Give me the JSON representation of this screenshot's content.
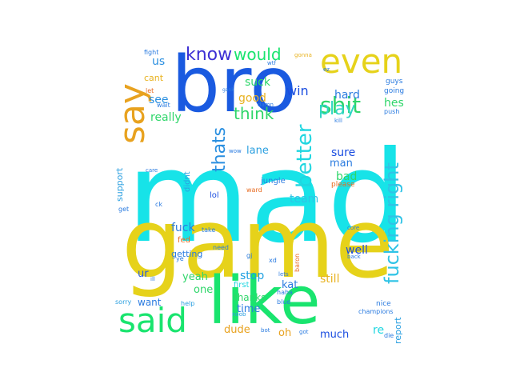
{
  "words": [
    {
      "text": "mad",
      "color": "#17e3e8"
    },
    {
      "text": "game",
      "color": "#e6d21a"
    },
    {
      "text": "bro",
      "color": "#1a5ae0"
    },
    {
      "text": "like",
      "color": "#19e46e"
    },
    {
      "text": "said",
      "color": "#19e46e"
    },
    {
      "text": "even",
      "color": "#e6d21a"
    },
    {
      "text": "say",
      "color": "#e8a21f"
    },
    {
      "text": "know",
      "color": "#3c2fd4"
    },
    {
      "text": "would",
      "color": "#19e46e"
    },
    {
      "text": "shit",
      "color": "#2fd66a"
    },
    {
      "text": "play",
      "color": "#2fd6c4"
    },
    {
      "text": "thats",
      "color": "#2a8fe0"
    },
    {
      "text": "better",
      "color": "#1fd6e0"
    },
    {
      "text": "fucking right",
      "color": "#2fc3e6"
    },
    {
      "text": "think",
      "color": "#2fd66a"
    },
    {
      "text": "suck",
      "color": "#2fd66a"
    },
    {
      "text": "win",
      "color": "#1a4de0"
    },
    {
      "text": "good",
      "color": "#e8b21f"
    },
    {
      "text": "really",
      "color": "#2fd66a"
    },
    {
      "text": "see",
      "color": "#2a8fe0"
    },
    {
      "text": "us",
      "color": "#2a8fe0"
    },
    {
      "text": "hard",
      "color": "#2a7be0"
    },
    {
      "text": "hes",
      "color": "#2fd66a"
    },
    {
      "text": "sure",
      "color": "#1a4de0"
    },
    {
      "text": "man",
      "color": "#2a7be0"
    },
    {
      "text": "bad",
      "color": "#2fd66a"
    },
    {
      "text": "team",
      "color": "#2fc3e6"
    },
    {
      "text": "lane",
      "color": "#2a9fe0"
    },
    {
      "text": "fuck",
      "color": "#2a7be0"
    },
    {
      "text": "well",
      "color": "#1a4de0"
    },
    {
      "text": "yeah",
      "color": "#2fd66a"
    },
    {
      "text": "one",
      "color": "#2fd66a"
    },
    {
      "text": "stop",
      "color": "#1fa0e0"
    },
    {
      "text": "still",
      "color": "#e8b21f"
    },
    {
      "text": "thanks",
      "color": "#2fd66a"
    },
    {
      "text": "time",
      "color": "#2a7be0"
    },
    {
      "text": "dude",
      "color": "#e8a21f"
    },
    {
      "text": "oh",
      "color": "#e8a21f"
    },
    {
      "text": "much",
      "color": "#1a4de0"
    },
    {
      "text": "re",
      "color": "#1fd6e0"
    },
    {
      "text": "report",
      "color": "#2a9fe0"
    },
    {
      "text": "want",
      "color": "#2a7be0"
    },
    {
      "text": "ur",
      "color": "#2a5be0"
    },
    {
      "text": "kat",
      "color": "#2a7be0"
    },
    {
      "text": "support",
      "color": "#2a9fe0"
    },
    {
      "text": "getting",
      "color": "#2a7be0"
    },
    {
      "text": "cant",
      "color": "#e8b21f"
    },
    {
      "text": "lol",
      "color": "#1a4de0"
    },
    {
      "text": "jungle",
      "color": "#2a7be0"
    },
    {
      "text": "please",
      "color": "#e86a1f"
    },
    {
      "text": "ward",
      "color": "#e86a1f"
    },
    {
      "text": "fed",
      "color": "#e86a1f"
    },
    {
      "text": "didnt",
      "color": "#2a9fe0"
    },
    {
      "text": "baron",
      "color": "#e86a1f"
    },
    {
      "text": "guys",
      "color": "#2a7be0"
    },
    {
      "text": "going",
      "color": "#2a7be0"
    },
    {
      "text": "push",
      "color": "#2a7be0"
    },
    {
      "text": "nice",
      "color": "#2a7be0"
    },
    {
      "text": "champions",
      "color": "#2a7be0"
    },
    {
      "text": "die",
      "color": "#2a7be0"
    },
    {
      "text": "sorry",
      "color": "#2a9fe0"
    },
    {
      "text": "help",
      "color": "#2a9fe0"
    },
    {
      "text": "need",
      "color": "#2a7be0"
    },
    {
      "text": "take",
      "color": "#2a7be0"
    },
    {
      "text": "get",
      "color": "#2a7be0"
    },
    {
      "text": "first",
      "color": "#1fd6e0"
    },
    {
      "text": "blue",
      "color": "#2a7be0"
    },
    {
      "text": "haha",
      "color": "#2a7be0"
    },
    {
      "text": "lets",
      "color": "#2a7be0"
    },
    {
      "text": "noob",
      "color": "#2a9fe0"
    },
    {
      "text": "bot",
      "color": "#2a7be0"
    },
    {
      "text": "got",
      "color": "#2a7be0"
    },
    {
      "text": "fight",
      "color": "#2a7be0"
    },
    {
      "text": "wait",
      "color": "#2a7be0"
    },
    {
      "text": "let",
      "color": "#e86a1f"
    },
    {
      "text": "gonna",
      "color": "#e8b21f"
    },
    {
      "text": "damn",
      "color": "#2a7be0"
    },
    {
      "text": "xd",
      "color": "#2a7be0"
    },
    {
      "text": "gj",
      "color": "#2a7be0"
    },
    {
      "text": "kill",
      "color": "#2a7be0"
    },
    {
      "text": "ez",
      "color": "#2a7be0"
    },
    {
      "text": "wtf",
      "color": "#2a7be0"
    },
    {
      "text": "wow",
      "color": "#2a7be0"
    },
    {
      "text": "ck",
      "color": "#2a7be0"
    },
    {
      "text": "ill",
      "color": "#2a7be0"
    },
    {
      "text": "ye",
      "color": "#2a7be0"
    },
    {
      "text": "core",
      "color": "#2a7be0"
    },
    {
      "text": "back",
      "color": "#2a7be0"
    },
    {
      "text": "care",
      "color": "#2a7be0"
    },
    {
      "text": "gank",
      "color": "#2a7be0"
    }
  ]
}
